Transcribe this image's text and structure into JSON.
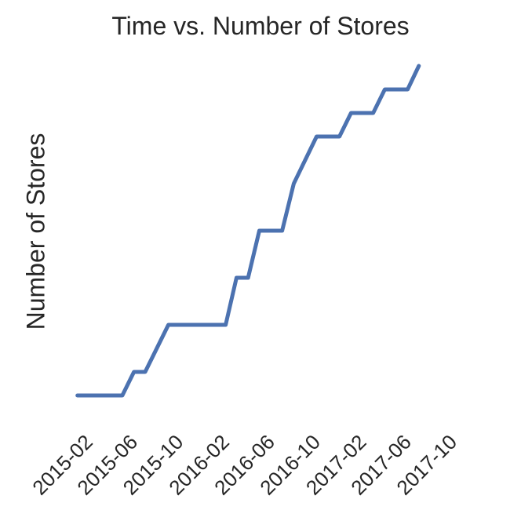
{
  "chart_data": {
    "type": "line",
    "title": "Time vs. Number of Stores",
    "xlabel": "",
    "ylabel": "Number of Stores",
    "grid": false,
    "legend": "none",
    "x_ticks": [
      "2015-02",
      "2015-06",
      "2015-10",
      "2016-02",
      "2016-06",
      "2016-10",
      "2017-02",
      "2017-06",
      "2017-10"
    ],
    "xlim": [
      "2015-01-01",
      "2017-10-01"
    ],
    "ylim": [
      0,
      15
    ],
    "series": [
      {
        "color": "#4c72b0",
        "points": [
          {
            "x": "2015-01-15",
            "y": 1
          },
          {
            "x": "2015-05-15",
            "y": 1
          },
          {
            "x": "2015-06-15",
            "y": 2
          },
          {
            "x": "2015-07-15",
            "y": 2
          },
          {
            "x": "2015-09-15",
            "y": 4
          },
          {
            "x": "2015-10-15",
            "y": 4
          },
          {
            "x": "2016-01-15",
            "y": 4
          },
          {
            "x": "2016-02-15",
            "y": 4
          },
          {
            "x": "2016-03-15",
            "y": 6
          },
          {
            "x": "2016-04-15",
            "y": 6
          },
          {
            "x": "2016-05-15",
            "y": 8
          },
          {
            "x": "2016-06-15",
            "y": 8
          },
          {
            "x": "2016-07-15",
            "y": 8
          },
          {
            "x": "2016-08-15",
            "y": 10
          },
          {
            "x": "2016-10-15",
            "y": 12
          },
          {
            "x": "2016-12-15",
            "y": 12
          },
          {
            "x": "2017-01-15",
            "y": 13
          },
          {
            "x": "2017-03-15",
            "y": 13
          },
          {
            "x": "2017-04-15",
            "y": 14
          },
          {
            "x": "2017-06-15",
            "y": 14
          },
          {
            "x": "2017-07-15",
            "y": 15
          }
        ]
      }
    ]
  }
}
